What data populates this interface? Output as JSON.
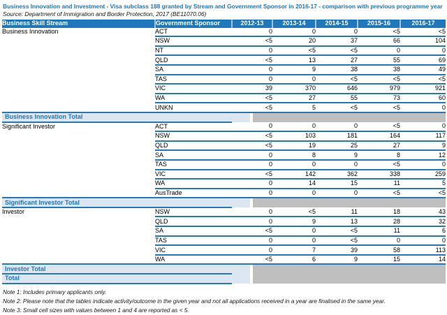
{
  "title": "Business Innovation and Investment - Visa subclass 188 granted by Stream and Government Sponsor in 2016-17 - comparison with previous programme year",
  "source": "Source: Department of Immigration and Border Protection, 2017 (BE11070.06)",
  "colors": {
    "header_bg": "#1F77BC",
    "header_text": "#FFFFFF",
    "title_text": "#1F77BC",
    "row_line": "#2779BD",
    "header_separator": "#9DC3E6",
    "total_label_bg": "#DCE6F1",
    "total_label_text": "#1F77BC",
    "suppressed_gray": "#BFBFBF"
  },
  "table": {
    "columns": [
      "Business Skill Stream",
      "Government Sponsor",
      "2012-13",
      "2013-14",
      "2014-15",
      "2015-16",
      "2016-17"
    ],
    "sections": [
      {
        "stream": "Business Innovation",
        "rows": [
          {
            "sponsor": "ACT",
            "values": [
              "0",
              "0",
              "0",
              "<5",
              "<5"
            ]
          },
          {
            "sponsor": "NSW",
            "values": [
              "<5",
              "20",
              "37",
              "66",
              "104"
            ]
          },
          {
            "sponsor": "NT",
            "values": [
              "0",
              "<5",
              "<5",
              "0",
              "0"
            ]
          },
          {
            "sponsor": "QLD",
            "values": [
              "<5",
              "13",
              "27",
              "55",
              "69"
            ]
          },
          {
            "sponsor": "SA",
            "values": [
              "0",
              "9",
              "38",
              "38",
              "49"
            ]
          },
          {
            "sponsor": "TAS",
            "values": [
              "0",
              "0",
              "<5",
              "<5",
              "<5"
            ]
          },
          {
            "sponsor": "VIC",
            "values": [
              "39",
              "370",
              "646",
              "979",
              "921"
            ]
          },
          {
            "sponsor": "WA",
            "values": [
              "<5",
              "27",
              "55",
              "73",
              "60"
            ]
          },
          {
            "sponsor": "UNKN",
            "values": [
              "<5",
              "5",
              "<5",
              "<5",
              "0"
            ]
          }
        ],
        "total_label": "Business Innovation Total"
      },
      {
        "stream": "Significant Investor",
        "rows": [
          {
            "sponsor": "ACT",
            "values": [
              "0",
              "0",
              "0",
              "<5",
              "0"
            ]
          },
          {
            "sponsor": "NSW",
            "values": [
              "<5",
              "103",
              "181",
              "164",
              "117"
            ]
          },
          {
            "sponsor": "QLD",
            "values": [
              "<5",
              "19",
              "25",
              "27",
              "9"
            ]
          },
          {
            "sponsor": "SA",
            "values": [
              "0",
              "8",
              "9",
              "8",
              "12"
            ]
          },
          {
            "sponsor": "TAS",
            "values": [
              "0",
              "0",
              "0",
              "<5",
              "0"
            ]
          },
          {
            "sponsor": "VIC",
            "values": [
              "<5",
              "142",
              "362",
              "338",
              "259"
            ]
          },
          {
            "sponsor": "WA",
            "values": [
              "0",
              "14",
              "15",
              "11",
              "5"
            ]
          },
          {
            "sponsor": "AusTrade",
            "values": [
              "0",
              "0",
              "0",
              "<5",
              "<5"
            ]
          }
        ],
        "total_label": "Significant Investor Total"
      },
      {
        "stream": "Investor",
        "rows": [
          {
            "sponsor": "NSW",
            "values": [
              "0",
              "<5",
              "11",
              "18",
              "43"
            ]
          },
          {
            "sponsor": "QLD",
            "values": [
              "0",
              "9",
              "13",
              "28",
              "32"
            ]
          },
          {
            "sponsor": "SA",
            "values": [
              "<5",
              "0",
              "<5",
              "11",
              "6"
            ]
          },
          {
            "sponsor": "TAS",
            "values": [
              "0",
              "0",
              "<5",
              "0",
              "0"
            ]
          },
          {
            "sponsor": "VIC",
            "values": [
              "0",
              "7",
              "39",
              "58",
              "113"
            ]
          },
          {
            "sponsor": "WA",
            "values": [
              "<5",
              "6",
              "9",
              "15",
              "14"
            ]
          }
        ],
        "total_label": "Investor Total"
      }
    ],
    "grand_total_label": "Total"
  },
  "notes": [
    "Note 1: Includes primary applicants only.",
    "Note 2: Please note that the tables indicate activity/outcome in the given year and not all applications received in a year are finalised in the same year.",
    "Note 3: Small cell sizes with values between 1 and 4 are reported as < 5."
  ]
}
